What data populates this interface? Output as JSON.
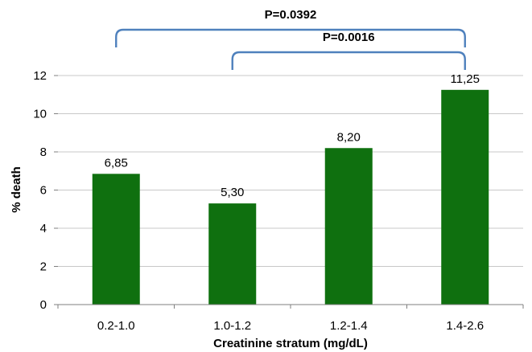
{
  "chart_data": {
    "type": "bar",
    "categories": [
      "0.2-1.0",
      "1.0-1.2",
      "1.2-1.4",
      "1.4-2.6"
    ],
    "values": [
      6.85,
      5.3,
      8.2,
      11.25
    ],
    "value_labels": [
      "6,85",
      "5,30",
      "8,20",
      "11,25"
    ],
    "ylim": [
      0,
      12
    ],
    "yticks": [
      0,
      2,
      4,
      6,
      8,
      10,
      12
    ],
    "xlabel": "Creatinine stratum (mg/dL)",
    "ylabel": "% death",
    "grid": true,
    "bar_color": "#0f700f",
    "annotations": [
      {
        "label": "P=0.0392",
        "from_category": 0,
        "to_category": 3
      },
      {
        "label": "P=0.0016",
        "from_category": 1,
        "to_category": 3
      }
    ],
    "bracket_color": "#4f81bd"
  }
}
